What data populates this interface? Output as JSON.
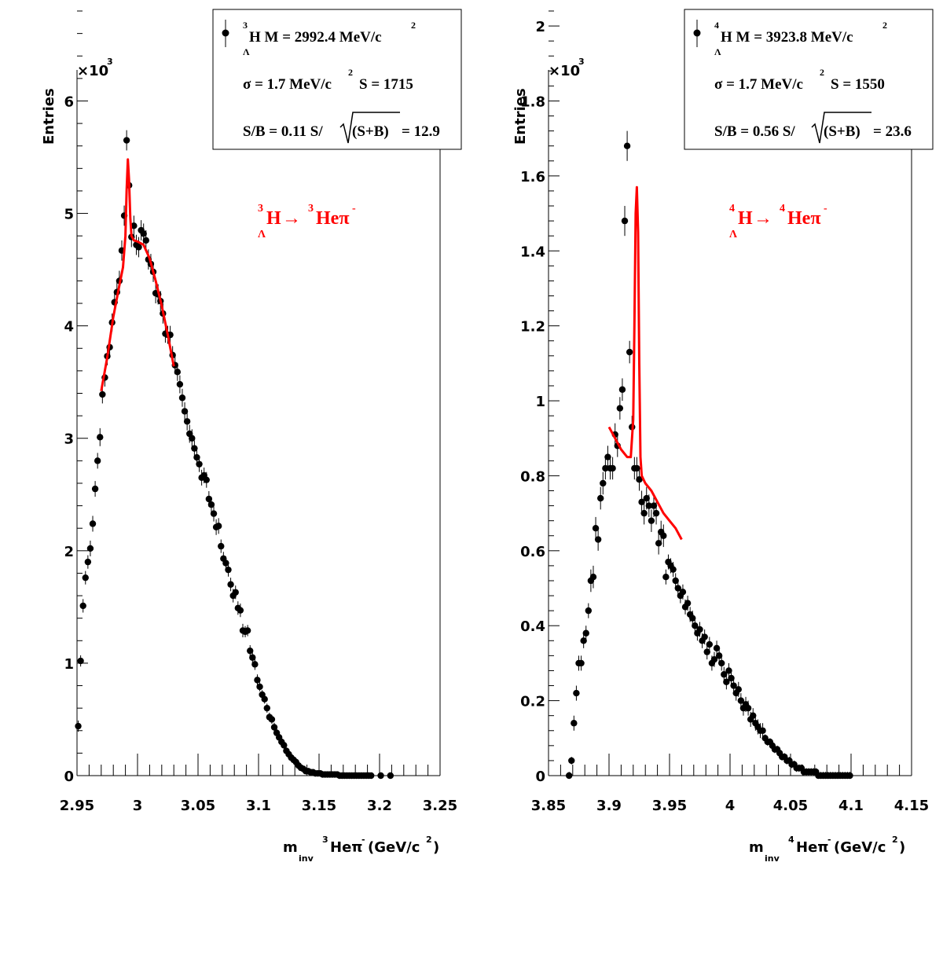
{
  "chart_data": [
    {
      "type": "scatter",
      "ylabel": "Entries",
      "yscale_label": "×10",
      "yscale_exp": "3",
      "xlabel": {
        "m": "m",
        "inv": "inv",
        "nucleus_sup": "3",
        "particle": "Heπ",
        "charge_sup": "-",
        "unit": "(GeV/c",
        "unit_sup": "2",
        "unit_close": ")"
      },
      "xlim": [
        2.95,
        3.25
      ],
      "ylim": [
        0,
        6.8
      ],
      "xticks": [
        2.95,
        3.0,
        3.05,
        3.1,
        3.15,
        3.2,
        3.25
      ],
      "xtick_labels": [
        "2.95",
        "3",
        "3.05",
        "3.1",
        "3.15",
        "3.2",
        "3.25"
      ],
      "yticks": [
        0,
        1,
        2,
        3,
        4,
        5,
        6
      ],
      "ytick_labels": [
        "0",
        "1",
        "2",
        "3",
        "4",
        "5",
        "6"
      ],
      "legend": {
        "position": "top-right",
        "line1": {
          "nucleus_sup": "3",
          "sub": "Λ",
          "text": "H M = 2992.4 MeV/c",
          "sup": "2"
        },
        "line2": {
          "text_a": "σ = 1.7 MeV/c",
          "sup": "2",
          "text_b": "S = 1715"
        },
        "line3": {
          "text_a": "S/B = 0.11  S/",
          "root": "(S+B)",
          "text_b": " = 12.9"
        }
      },
      "reaction": {
        "nucleus_sup": "3",
        "sub": "Λ",
        "parent": "H",
        "arrow": "→",
        "daughter_sup": "3",
        "daughter": "Heπ",
        "charge_sup": "-",
        "color": "#ff0000"
      },
      "points": {
        "x": [
          2.951,
          2.953,
          2.955,
          2.957,
          2.959,
          2.961,
          2.963,
          2.965,
          2.967,
          2.969,
          2.971,
          2.973,
          2.975,
          2.977,
          2.979,
          2.981,
          2.983,
          2.985,
          2.987,
          2.989,
          2.991,
          2.993,
          2.995,
          2.997,
          2.999,
          3.001,
          3.003,
          3.005,
          3.007,
          3.009,
          3.011,
          3.013,
          3.015,
          3.017,
          3.019,
          3.021,
          3.023,
          3.025,
          3.027,
          3.029,
          3.031,
          3.033,
          3.035,
          3.037,
          3.039,
          3.041,
          3.043,
          3.045,
          3.047,
          3.049,
          3.051,
          3.053,
          3.055,
          3.057,
          3.059,
          3.061,
          3.063,
          3.065,
          3.067,
          3.069,
          3.071,
          3.073,
          3.075,
          3.077,
          3.079,
          3.081,
          3.083,
          3.085,
          3.087,
          3.089,
          3.091,
          3.093,
          3.095,
          3.097,
          3.099,
          3.101,
          3.103,
          3.105,
          3.107,
          3.109,
          3.111,
          3.113,
          3.115,
          3.117,
          3.119,
          3.121,
          3.123,
          3.125,
          3.127,
          3.129,
          3.131,
          3.133,
          3.135,
          3.137,
          3.139,
          3.141,
          3.143,
          3.145,
          3.147,
          3.149,
          3.151,
          3.153,
          3.155,
          3.157,
          3.159,
          3.161,
          3.163,
          3.165,
          3.167,
          3.169,
          3.171,
          3.173,
          3.175,
          3.177,
          3.179,
          3.181,
          3.183,
          3.185,
          3.187,
          3.189,
          3.191,
          3.193,
          3.201,
          3.209
        ],
        "y": [
          0.44,
          1.02,
          1.51,
          1.76,
          1.9,
          2.02,
          2.24,
          2.55,
          2.8,
          3.01,
          3.39,
          3.54,
          3.73,
          3.81,
          4.03,
          4.21,
          4.3,
          4.4,
          4.67,
          4.98,
          5.65,
          5.25,
          4.79,
          4.89,
          4.72,
          4.7,
          4.85,
          4.82,
          4.76,
          4.59,
          4.55,
          4.48,
          4.29,
          4.28,
          4.22,
          4.11,
          3.93,
          3.92,
          3.92,
          3.74,
          3.65,
          3.59,
          3.48,
          3.36,
          3.24,
          3.15,
          3.04,
          3.0,
          2.91,
          2.83,
          2.77,
          2.65,
          2.67,
          2.63,
          2.46,
          2.41,
          2.33,
          2.21,
          2.22,
          2.04,
          1.93,
          1.89,
          1.83,
          1.7,
          1.6,
          1.63,
          1.49,
          1.47,
          1.29,
          1.28,
          1.29,
          1.11,
          1.05,
          0.99,
          0.85,
          0.79,
          0.72,
          0.68,
          0.6,
          0.52,
          0.5,
          0.43,
          0.38,
          0.34,
          0.3,
          0.27,
          0.22,
          0.19,
          0.16,
          0.14,
          0.12,
          0.09,
          0.07,
          0.06,
          0.04,
          0.04,
          0.03,
          0.03,
          0.02,
          0.02,
          0.02,
          0.01,
          0.01,
          0.01,
          0.01,
          0.01,
          0.01,
          0.01,
          0.0,
          0.0,
          0.0,
          0.0,
          0.0,
          0.0,
          0.0,
          0.0,
          0.0,
          0.0,
          0.0,
          0.0,
          0.0,
          0.0,
          0.0,
          0.0
        ],
        "err": [
          0.05,
          0.05,
          0.06,
          0.06,
          0.06,
          0.07,
          0.07,
          0.07,
          0.07,
          0.08,
          0.08,
          0.08,
          0.08,
          0.08,
          0.08,
          0.09,
          0.09,
          0.09,
          0.09,
          0.09,
          0.09,
          0.09,
          0.09,
          0.09,
          0.09,
          0.09,
          0.09,
          0.09,
          0.09,
          0.09,
          0.09,
          0.09,
          0.09,
          0.09,
          0.09,
          0.09,
          0.08,
          0.08,
          0.08,
          0.08,
          0.08,
          0.08,
          0.08,
          0.08,
          0.08,
          0.08,
          0.08,
          0.08,
          0.07,
          0.07,
          0.07,
          0.07,
          0.07,
          0.07,
          0.07,
          0.07,
          0.07,
          0.07,
          0.07,
          0.06,
          0.06,
          0.06,
          0.06,
          0.06,
          0.06,
          0.06,
          0.06,
          0.06,
          0.06,
          0.05,
          0.05,
          0.05,
          0.05,
          0.05,
          0.05,
          0.04,
          0.04,
          0.04,
          0.04,
          0.04,
          0.04,
          0.04,
          0.04,
          0.04,
          0.03,
          0.03,
          0.03,
          0.03,
          0.03,
          0.03,
          0.03,
          0.02,
          0.02,
          0.02,
          0.02,
          0.02,
          0.02,
          0.02,
          0.02,
          0.02,
          0.02,
          0.02,
          0.02,
          0.02,
          0.02,
          0.02,
          0.02,
          0.02,
          0.02,
          0.02,
          0.02,
          0.02,
          0.02,
          0.02,
          0.02,
          0.02,
          0.02,
          0.02,
          0.02,
          0.02,
          0.02,
          0.02,
          0.02,
          0.02
        ]
      },
      "fit": {
        "color": "#ff0000",
        "x": [
          2.97,
          2.975,
          2.98,
          2.985,
          2.988,
          2.99,
          2.991,
          2.992,
          2.993,
          2.994,
          2.995,
          2.997,
          3.0,
          3.005,
          3.01,
          3.015,
          3.02,
          3.025,
          3.03
        ],
        "y": [
          3.42,
          3.72,
          4.08,
          4.36,
          4.52,
          4.8,
          5.2,
          5.48,
          5.3,
          4.96,
          4.8,
          4.76,
          4.75,
          4.72,
          4.6,
          4.4,
          4.18,
          3.92,
          3.64
        ]
      }
    },
    {
      "type": "scatter",
      "ylabel": "Entries",
      "yscale_label": "×10",
      "yscale_exp": "3",
      "xlabel": {
        "m": "m",
        "inv": "inv",
        "nucleus_sup": "4",
        "particle": "Heπ",
        "charge_sup": "-",
        "unit": "(GeV/c",
        "unit_sup": "2",
        "unit_close": ")"
      },
      "xlim": [
        3.85,
        4.15
      ],
      "ylim": [
        0,
        2.04
      ],
      "xticks": [
        3.85,
        3.9,
        3.95,
        4.0,
        4.05,
        4.1,
        4.15
      ],
      "xtick_labels": [
        "3.85",
        "3.9",
        "3.95",
        "4",
        "4.05",
        "4.1",
        "4.15"
      ],
      "yticks": [
        0,
        0.2,
        0.4,
        0.6,
        0.8,
        1.0,
        1.2,
        1.4,
        1.6,
        1.8,
        2.0
      ],
      "ytick_labels": [
        "0",
        "0.2",
        "0.4",
        "0.6",
        "0.8",
        "1",
        "1.2",
        "1.4",
        "1.6",
        "1.8",
        "2"
      ],
      "legend": {
        "position": "top-right",
        "line1": {
          "nucleus_sup": "4",
          "sub": "Λ",
          "text": "H M = 3923.8 MeV/c",
          "sup": "2"
        },
        "line2": {
          "text_a": "σ = 1.7 MeV/c",
          "sup": "2",
          "text_b": "S = 1550"
        },
        "line3": {
          "text_a": "S/B = 0.56  S/",
          "root": "(S+B)",
          "text_b": " = 23.6"
        }
      },
      "reaction": {
        "nucleus_sup": "4",
        "sub": "Λ",
        "parent": "H",
        "arrow": "→",
        "daughter_sup": "4",
        "daughter": "Heπ",
        "charge_sup": "-",
        "color": "#ff0000"
      },
      "points": {
        "x": [
          3.867,
          3.869,
          3.871,
          3.873,
          3.875,
          3.877,
          3.879,
          3.881,
          3.883,
          3.885,
          3.887,
          3.889,
          3.891,
          3.893,
          3.895,
          3.897,
          3.899,
          3.901,
          3.903,
          3.905,
          3.907,
          3.909,
          3.911,
          3.913,
          3.915,
          3.917,
          3.919,
          3.921,
          3.923,
          3.925,
          3.927,
          3.929,
          3.931,
          3.933,
          3.935,
          3.937,
          3.939,
          3.941,
          3.943,
          3.945,
          3.947,
          3.949,
          3.951,
          3.953,
          3.955,
          3.957,
          3.959,
          3.961,
          3.963,
          3.965,
          3.967,
          3.969,
          3.971,
          3.973,
          3.975,
          3.977,
          3.979,
          3.981,
          3.983,
          3.985,
          3.987,
          3.989,
          3.991,
          3.993,
          3.995,
          3.997,
          3.999,
          4.001,
          4.003,
          4.005,
          4.007,
          4.009,
          4.011,
          4.013,
          4.015,
          4.017,
          4.019,
          4.021,
          4.023,
          4.025,
          4.027,
          4.029,
          4.031,
          4.033,
          4.035,
          4.037,
          4.039,
          4.041,
          4.043,
          4.045,
          4.047,
          4.049,
          4.051,
          4.053,
          4.055,
          4.057,
          4.059,
          4.061,
          4.063,
          4.065,
          4.067,
          4.069,
          4.071,
          4.073,
          4.075,
          4.077,
          4.079,
          4.081,
          4.083,
          4.085,
          4.087,
          4.089,
          4.091,
          4.093,
          4.095,
          4.097,
          4.099
        ],
        "y": [
          0.0,
          0.04,
          0.14,
          0.22,
          0.3,
          0.3,
          0.36,
          0.38,
          0.44,
          0.52,
          0.53,
          0.66,
          0.63,
          0.74,
          0.78,
          0.82,
          0.85,
          0.82,
          0.82,
          0.91,
          0.88,
          0.98,
          1.03,
          1.48,
          1.68,
          1.13,
          0.93,
          0.82,
          0.82,
          0.79,
          0.73,
          0.7,
          0.74,
          0.72,
          0.68,
          0.72,
          0.7,
          0.62,
          0.65,
          0.64,
          0.53,
          0.57,
          0.56,
          0.55,
          0.52,
          0.5,
          0.48,
          0.49,
          0.45,
          0.46,
          0.43,
          0.42,
          0.4,
          0.38,
          0.39,
          0.36,
          0.37,
          0.33,
          0.35,
          0.3,
          0.31,
          0.34,
          0.32,
          0.3,
          0.27,
          0.25,
          0.28,
          0.26,
          0.24,
          0.22,
          0.23,
          0.2,
          0.18,
          0.19,
          0.18,
          0.15,
          0.16,
          0.14,
          0.13,
          0.12,
          0.12,
          0.1,
          0.09,
          0.09,
          0.08,
          0.07,
          0.07,
          0.06,
          0.05,
          0.05,
          0.04,
          0.04,
          0.03,
          0.03,
          0.02,
          0.02,
          0.02,
          0.01,
          0.01,
          0.01,
          0.01,
          0.01,
          0.01,
          0.0,
          0.0,
          0.0,
          0.0,
          0.0,
          0.0,
          0.0,
          0.0,
          0.0,
          0.0,
          0.0,
          0.0,
          0.0,
          0.0
        ],
        "err": [
          0.01,
          0.01,
          0.02,
          0.02,
          0.02,
          0.02,
          0.02,
          0.02,
          0.02,
          0.03,
          0.03,
          0.03,
          0.03,
          0.03,
          0.03,
          0.03,
          0.03,
          0.03,
          0.03,
          0.03,
          0.03,
          0.03,
          0.03,
          0.04,
          0.04,
          0.03,
          0.03,
          0.03,
          0.03,
          0.03,
          0.03,
          0.03,
          0.03,
          0.03,
          0.03,
          0.03,
          0.03,
          0.03,
          0.03,
          0.03,
          0.02,
          0.02,
          0.02,
          0.02,
          0.02,
          0.02,
          0.02,
          0.02,
          0.02,
          0.02,
          0.02,
          0.02,
          0.02,
          0.02,
          0.02,
          0.02,
          0.02,
          0.02,
          0.02,
          0.02,
          0.02,
          0.02,
          0.02,
          0.02,
          0.02,
          0.02,
          0.02,
          0.02,
          0.02,
          0.02,
          0.02,
          0.02,
          0.02,
          0.02,
          0.02,
          0.02,
          0.02,
          0.02,
          0.02,
          0.02,
          0.02,
          0.01,
          0.01,
          0.01,
          0.01,
          0.01,
          0.01,
          0.01,
          0.01,
          0.01,
          0.01,
          0.01,
          0.01,
          0.01,
          0.01,
          0.01,
          0.01,
          0.01,
          0.01,
          0.01,
          0.01,
          0.01,
          0.01,
          0.01,
          0.01,
          0.01,
          0.01,
          0.01,
          0.01,
          0.01,
          0.01,
          0.01,
          0.01,
          0.01,
          0.01,
          0.01,
          0.01
        ]
      },
      "fit": {
        "color": "#ff0000",
        "x": [
          3.9,
          3.905,
          3.91,
          3.915,
          3.918,
          3.92,
          3.921,
          3.922,
          3.923,
          3.924,
          3.925,
          3.926,
          3.927,
          3.93,
          3.935,
          3.94,
          3.945,
          3.95,
          3.955,
          3.96
        ],
        "y": [
          0.93,
          0.9,
          0.87,
          0.85,
          0.85,
          0.95,
          1.2,
          1.5,
          1.57,
          1.45,
          1.1,
          0.85,
          0.8,
          0.78,
          0.76,
          0.73,
          0.7,
          0.68,
          0.66,
          0.63
        ]
      }
    }
  ]
}
